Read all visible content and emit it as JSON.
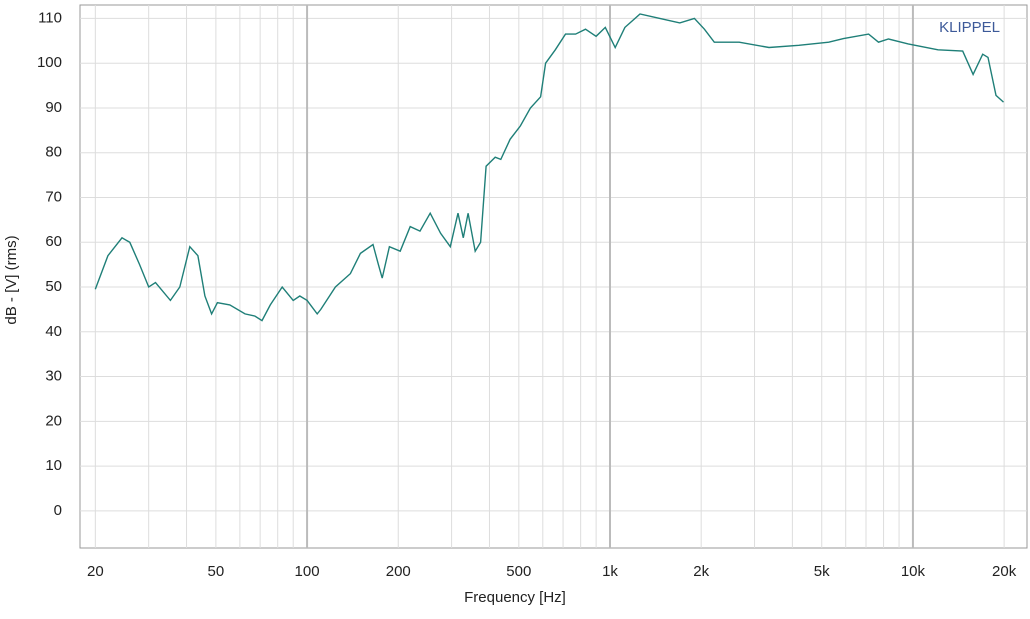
{
  "chart_data": {
    "type": "line",
    "x_label": "Frequency [Hz]",
    "y_label": "dB - [V]  (rms)",
    "annotation": "KLIPPEL",
    "x": [
      20,
      22,
      24.5,
      26,
      28,
      30,
      31.6,
      35.4,
      38,
      41,
      43.6,
      46,
      48.4,
      50.6,
      55.6,
      62.4,
      67.3,
      71,
      75.6,
      82.8,
      90,
      94.6,
      100,
      108,
      111,
      124,
      139,
      150,
      165,
      172,
      177,
      187,
      203,
      219,
      236,
      255,
      276,
      297,
      315,
      328,
      340,
      359,
      374,
      390,
      418,
      436,
      468,
      506,
      546,
      590,
      613,
      660,
      713,
      770,
      830,
      900,
      965,
      1040,
      1120,
      1256,
      1460,
      1700,
      1900,
      2050,
      2210,
      2670,
      3350,
      4200,
      5270,
      5900,
      7140,
      7700,
      8300,
      9650,
      12100,
      14600,
      15800,
      17000,
      17700,
      18800,
      19900
    ],
    "series": [
      {
        "color": "#1f7f78",
        "values": [
          49.5,
          57,
          61,
          60,
          55,
          50,
          51,
          47,
          50,
          59,
          57,
          48,
          44,
          46.5,
          46,
          44,
          43.5,
          42.5,
          46,
          50,
          47,
          48,
          47,
          44,
          45,
          50,
          53,
          57.5,
          59.5,
          55,
          52,
          59,
          58,
          63.5,
          62.5,
          66.5,
          62,
          59,
          66.5,
          61,
          66.5,
          58,
          60,
          77,
          79,
          78.5,
          83,
          86,
          90,
          92.5,
          100,
          103,
          106.5,
          106.5,
          107.6,
          106,
          108,
          103.5,
          108,
          111,
          110,
          109,
          110,
          107.6,
          104.7,
          104.7,
          103.5,
          104,
          104.7,
          105.5,
          106.5,
          104.7,
          105.4,
          104.3,
          103,
          102.7,
          97.5,
          102,
          101.3,
          92.8,
          91.3
        ]
      }
    ],
    "log_x": true,
    "xlim": [
      17.8,
      23800
    ],
    "ylim": [
      -8.3,
      113
    ],
    "xticks": [
      20,
      50,
      100,
      200,
      500,
      {
        "value": 1000,
        "label": "1k"
      },
      {
        "value": 2000,
        "label": "2k"
      },
      {
        "value": 5000,
        "label": "5k"
      },
      {
        "value": 10000,
        "label": "10k"
      },
      {
        "value": 20000,
        "label": "20k"
      }
    ],
    "x_minor_grid": [
      30,
      40,
      60,
      70,
      80,
      90,
      300,
      400,
      600,
      700,
      800,
      900,
      3000,
      4000,
      6000,
      7000,
      8000,
      9000
    ],
    "x_major_grid": [
      100,
      1000,
      10000
    ],
    "yticks": [
      0,
      10,
      20,
      30,
      40,
      50,
      60,
      70,
      80,
      90,
      100,
      110
    ],
    "grid": true
  }
}
